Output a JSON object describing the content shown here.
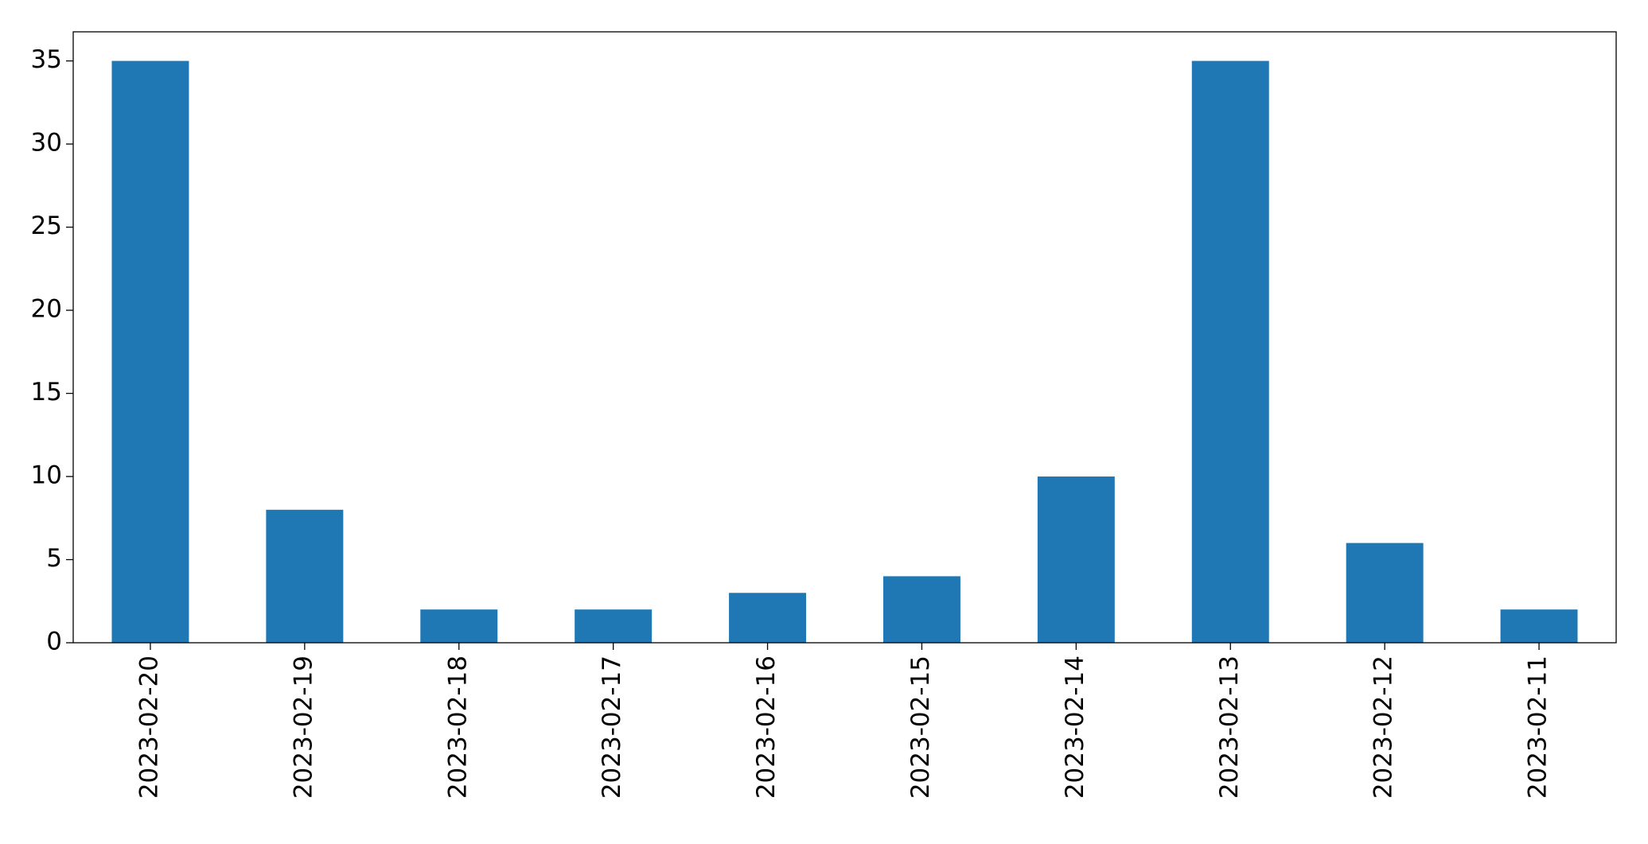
{
  "chart_data": {
    "type": "bar",
    "categories": [
      "2023-02-20",
      "2023-02-19",
      "2023-02-18",
      "2023-02-17",
      "2023-02-16",
      "2023-02-15",
      "2023-02-14",
      "2023-02-13",
      "2023-02-12",
      "2023-02-11"
    ],
    "values": [
      35,
      8,
      2,
      2,
      3,
      4,
      10,
      35,
      6,
      2
    ],
    "color": "#1f77b4",
    "ylim": [
      0,
      36.75
    ],
    "yticks": [
      0,
      5,
      10,
      15,
      20,
      25,
      30,
      35
    ],
    "grid": false
  }
}
